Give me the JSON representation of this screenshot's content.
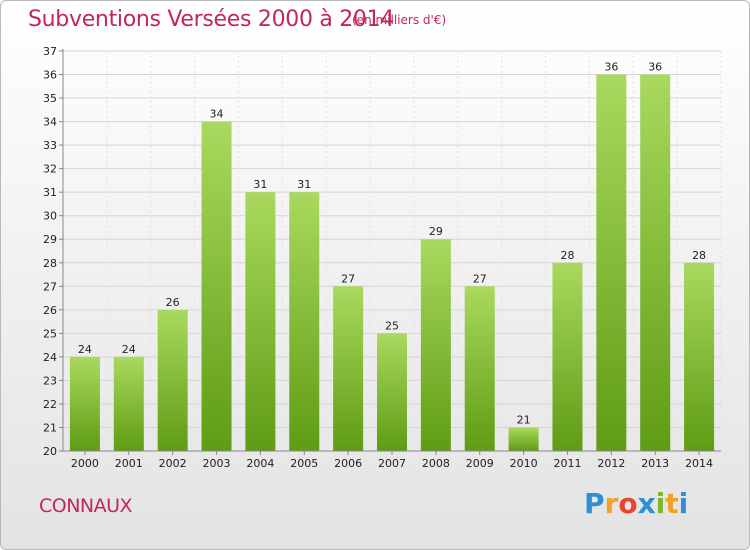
{
  "title": "Subventions Versées 2000 à 2014",
  "unit": "(en milliers d'€)",
  "town": "CONNAUX",
  "logo": {
    "text": "Proxiti",
    "letters": [
      "P",
      "r",
      "o",
      "x",
      "i",
      "t",
      "i"
    ],
    "colors": [
      "#2f8fd4",
      "#f1a128",
      "#e7452f",
      "#2f8fd4",
      "#7db827",
      "#f1a128",
      "#2f8fd4"
    ]
  },
  "colors": {
    "accent": "#c2265f",
    "bar_top": "#a9d95e",
    "bar_bottom": "#5f9c14"
  },
  "chart_data": {
    "type": "bar",
    "categories": [
      "2000",
      "2001",
      "2002",
      "2003",
      "2004",
      "2005",
      "2006",
      "2007",
      "2008",
      "2009",
      "2010",
      "2011",
      "2012",
      "2013",
      "2014"
    ],
    "values": [
      24,
      24,
      26,
      34,
      31,
      31,
      27,
      25,
      29,
      27,
      21,
      28,
      36,
      36,
      28
    ],
    "yticks": [
      "20",
      "21",
      "22",
      "23",
      "24",
      "25",
      "26",
      "27",
      "28",
      "29",
      "30",
      "31",
      "32",
      "33",
      "34",
      "35",
      "36",
      "37"
    ],
    "ylim": [
      20,
      37
    ],
    "grid": true,
    "title": "Subventions Versées 2000 à 2014",
    "xlabel": "",
    "ylabel": ""
  }
}
